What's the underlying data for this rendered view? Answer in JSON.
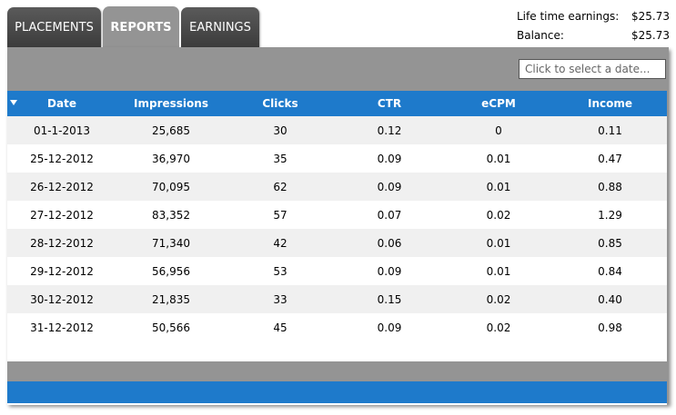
{
  "tabs": [
    {
      "label": "PLACEMENTS",
      "active": false
    },
    {
      "label": "REPORTS",
      "active": true
    },
    {
      "label": "EARNINGS",
      "active": false
    }
  ],
  "earnings": {
    "lifetime_label": "Life time earnings:",
    "lifetime_value": "$25.73",
    "balance_label": "Balance:",
    "balance_value": "$25.73"
  },
  "date_picker": {
    "placeholder": "Click to select a date..."
  },
  "table": {
    "columns": [
      "Date",
      "Impressions",
      "Clicks",
      "CTR",
      "eCPM",
      "Income"
    ],
    "rows": [
      [
        "01-1-2013",
        "25,685",
        "30",
        "0.12",
        "0",
        "0.11"
      ],
      [
        "25-12-2012",
        "36,970",
        "35",
        "0.09",
        "0.01",
        "0.47"
      ],
      [
        "26-12-2012",
        "70,095",
        "62",
        "0.09",
        "0.01",
        "0.88"
      ],
      [
        "27-12-2012",
        "83,352",
        "57",
        "0.07",
        "0.02",
        "1.29"
      ],
      [
        "28-12-2012",
        "71,340",
        "42",
        "0.06",
        "0.01",
        "0.85"
      ],
      [
        "29-12-2012",
        "56,956",
        "53",
        "0.09",
        "0.01",
        "0.84"
      ],
      [
        "30-12-2012",
        "21,835",
        "33",
        "0.15",
        "0.02",
        "0.40"
      ],
      [
        "31-12-2012",
        "50,566",
        "45",
        "0.09",
        "0.02",
        "0.98"
      ]
    ]
  },
  "colors": {
    "header_blue": "#1e7acb",
    "panel_gray": "#949494",
    "tab_dark": "#4a4a4a",
    "row_alt": "#f0f0f0"
  },
  "icons": {
    "sort": "sort-down-triangle-icon"
  }
}
